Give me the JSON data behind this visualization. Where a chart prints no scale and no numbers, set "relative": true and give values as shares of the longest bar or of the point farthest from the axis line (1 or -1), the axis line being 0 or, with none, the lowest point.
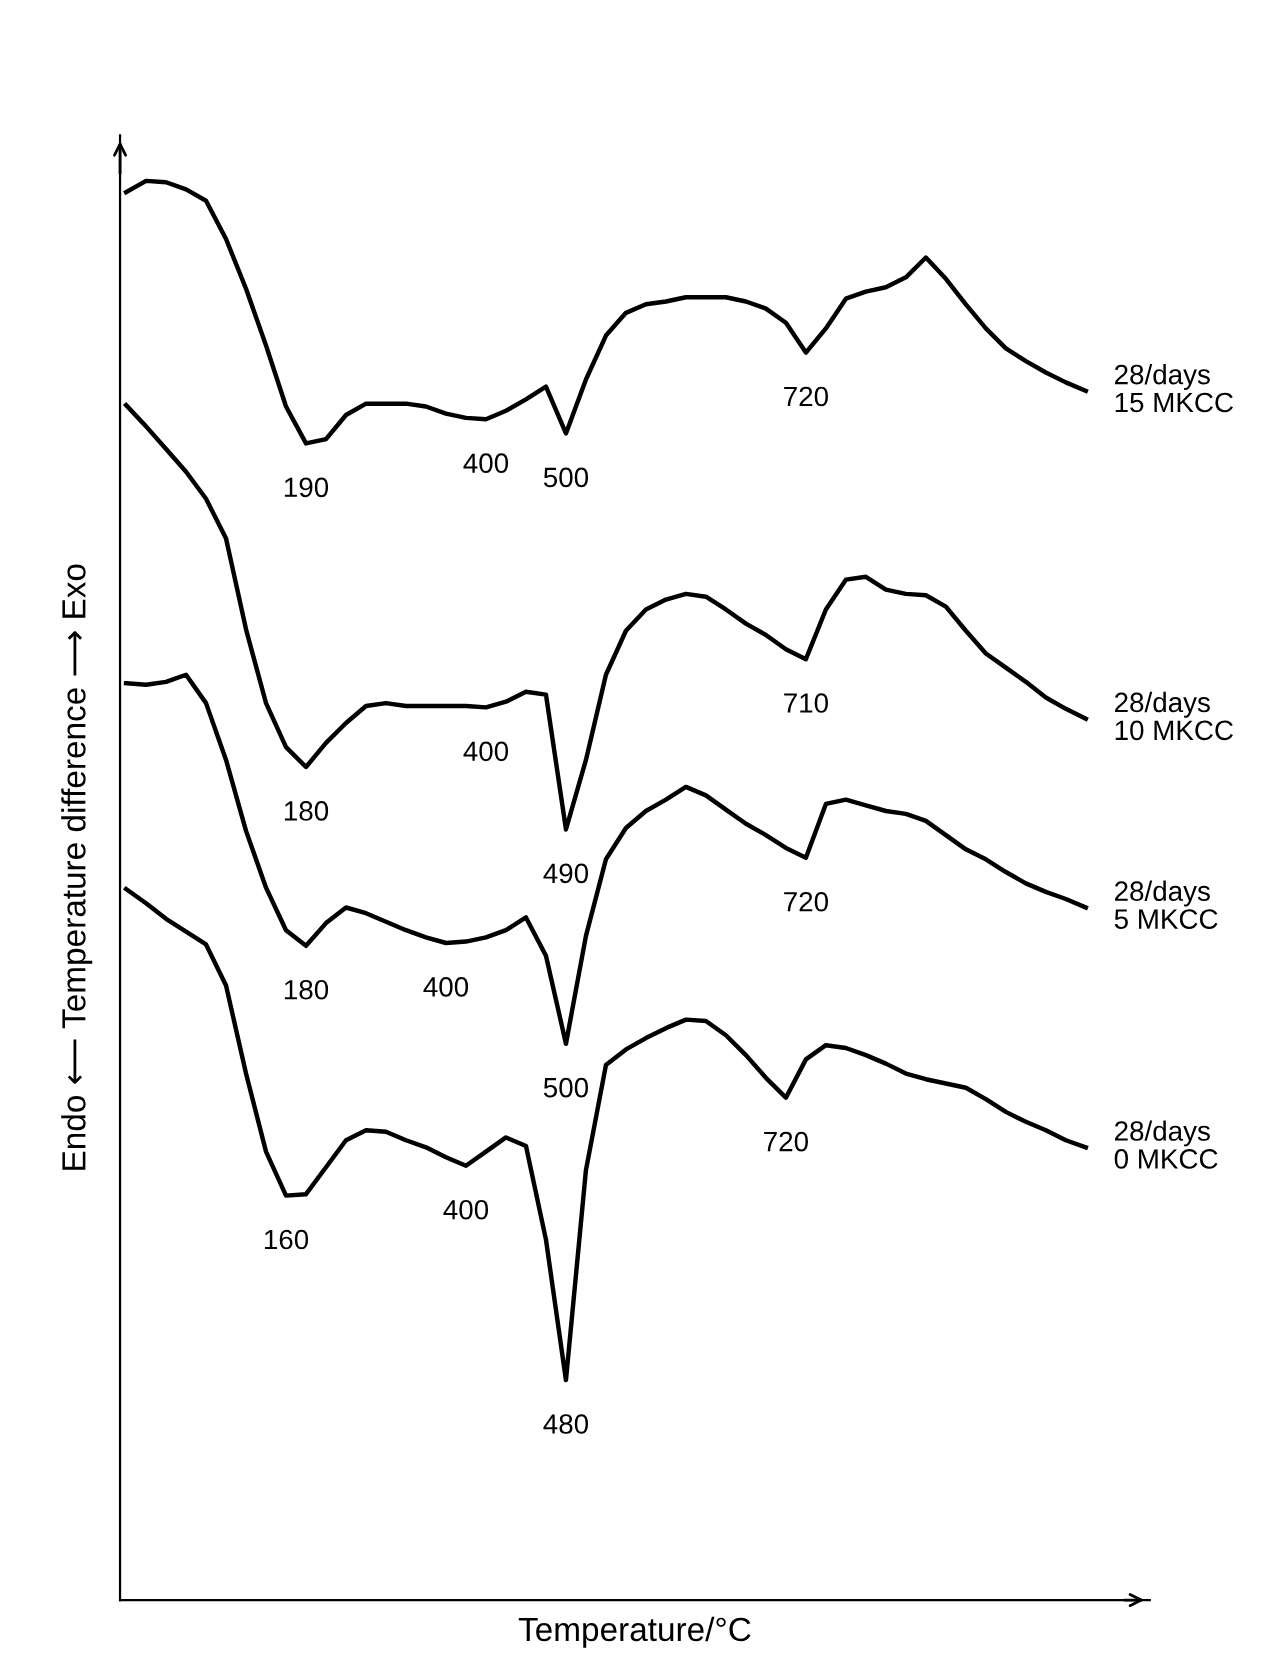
{
  "chart_data": {
    "type": "line",
    "relative": true,
    "xlabel": "Temperature/°C",
    "ylabel": "Endo ⟵ Temperature difference ⟶ Exo",
    "legend": false,
    "marker": "none",
    "line_style": "solid",
    "categories": [
      null,
      null,
      null,
      null,
      null,
      null,
      null,
      null,
      null,
      null,
      null,
      null,
      null,
      null,
      null,
      null,
      null,
      null,
      null,
      null,
      null,
      null,
      null,
      null,
      null,
      null,
      null,
      null,
      null,
      null,
      null,
      null,
      null,
      null,
      null,
      null,
      null,
      null,
      null,
      null,
      null,
      null,
      null,
      null,
      null,
      null,
      null,
      null,
      null
    ],
    "series": [
      {
        "name": "28/days\n15 MKCC",
        "color": "#000000",
        "values": [
          0.992,
          1.0,
          0.999,
          0.994,
          0.986,
          0.959,
          0.924,
          0.884,
          0.841,
          0.815,
          0.818,
          0.835,
          0.843,
          0.843,
          0.843,
          0.841,
          0.836,
          0.833,
          0.832,
          0.838,
          0.846,
          0.855,
          0.822,
          0.86,
          0.891,
          0.907,
          0.913,
          0.915,
          0.918,
          0.918,
          0.918,
          0.915,
          0.91,
          0.9,
          0.879,
          0.896,
          0.917,
          0.922,
          0.925,
          0.932,
          0.946,
          0.931,
          0.913,
          0.896,
          0.882,
          0.873,
          0.865,
          0.858,
          0.852
        ]
      },
      {
        "name": "28/days\n10 MKCC",
        "color": "#000000",
        "values": [
          0.842,
          0.827,
          0.811,
          0.795,
          0.776,
          0.748,
          0.684,
          0.632,
          0.601,
          0.587,
          0.604,
          0.618,
          0.63,
          0.632,
          0.63,
          0.63,
          0.63,
          0.63,
          0.629,
          0.633,
          0.64,
          0.638,
          0.543,
          0.592,
          0.652,
          0.683,
          0.698,
          0.705,
          0.709,
          0.707,
          0.698,
          0.688,
          0.68,
          0.67,
          0.663,
          0.698,
          0.719,
          0.721,
          0.712,
          0.709,
          0.708,
          0.7,
          0.683,
          0.667,
          0.657,
          0.647,
          0.636,
          0.628,
          0.621
        ]
      },
      {
        "name": "28/days\n5 MKCC",
        "color": "#000000",
        "values": [
          0.646,
          0.645,
          0.647,
          0.652,
          0.632,
          0.592,
          0.542,
          0.502,
          0.472,
          0.461,
          0.477,
          0.488,
          0.484,
          0.478,
          0.472,
          0.467,
          0.463,
          0.464,
          0.467,
          0.472,
          0.481,
          0.454,
          0.392,
          0.468,
          0.522,
          0.544,
          0.556,
          0.564,
          0.573,
          0.567,
          0.557,
          0.547,
          0.539,
          0.53,
          0.523,
          0.561,
          0.564,
          0.56,
          0.556,
          0.554,
          0.549,
          0.539,
          0.529,
          0.522,
          0.513,
          0.505,
          0.499,
          0.494,
          0.488
        ]
      },
      {
        "name": "28/days\n0 MKCC",
        "color": "#000000",
        "values": [
          0.501,
          0.491,
          0.48,
          0.471,
          0.462,
          0.433,
          0.371,
          0.316,
          0.285,
          0.286,
          0.305,
          0.324,
          0.331,
          0.33,
          0.324,
          0.319,
          0.312,
          0.306,
          0.316,
          0.326,
          0.32,
          0.254,
          0.155,
          0.303,
          0.377,
          0.388,
          0.396,
          0.403,
          0.409,
          0.408,
          0.398,
          0.384,
          0.368,
          0.354,
          0.381,
          0.391,
          0.389,
          0.384,
          0.378,
          0.371,
          0.367,
          0.364,
          0.361,
          0.353,
          0.344,
          0.337,
          0.331,
          0.324,
          0.319
        ]
      }
    ],
    "annotations": [
      {
        "text": "190",
        "y": 0.815
      },
      {
        "text": "400",
        "y": 0.832
      },
      {
        "text": "500",
        "y": 0.822
      },
      {
        "text": "720",
        "y": 0.879
      },
      {
        "text": "180",
        "y": 0.587
      },
      {
        "text": "400",
        "y": 0.629
      },
      {
        "text": "490",
        "y": 0.543
      },
      {
        "text": "710",
        "y": 0.663
      },
      {
        "text": "180",
        "y": 0.461
      },
      {
        "text": "400",
        "y": 0.463
      },
      {
        "text": "500",
        "y": 0.392
      },
      {
        "text": "720",
        "y": 0.523
      },
      {
        "text": "160",
        "y": 0.285
      },
      {
        "text": "400",
        "y": 0.306
      },
      {
        "text": "480",
        "y": 0.155
      },
      {
        "text": "720",
        "y": 0.354
      }
    ]
  }
}
